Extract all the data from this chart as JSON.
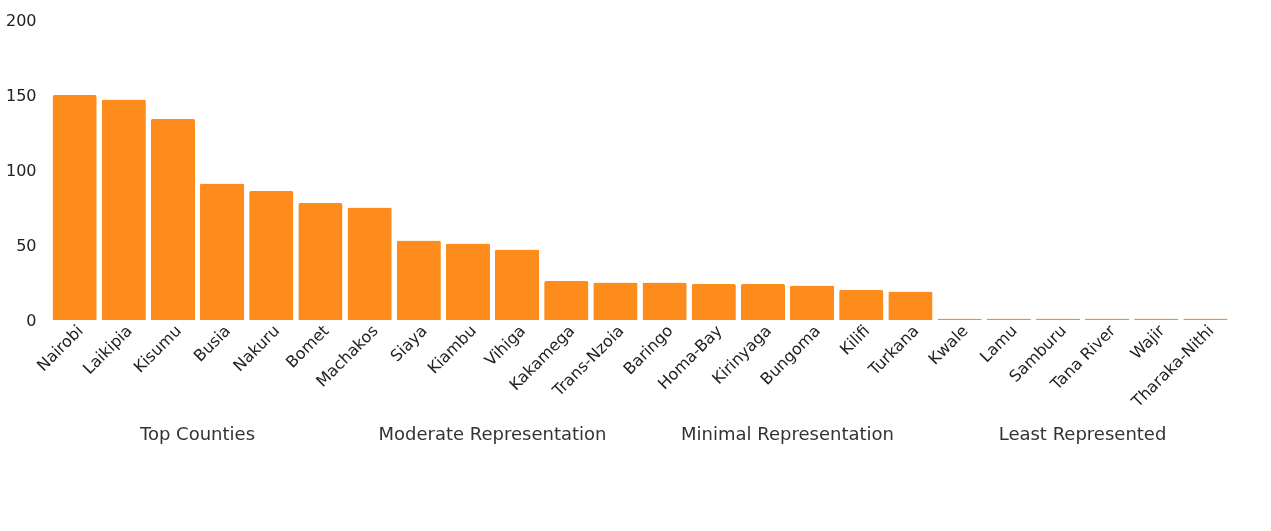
{
  "chart_data": {
    "type": "bar",
    "categories": [
      "Nairobi",
      "Laikipia",
      "Kisumu",
      "Busia",
      "Nakuru",
      "Bomet",
      "Machakos",
      "Siaya",
      "Kiambu",
      "Vihiga",
      "Kakamega",
      "Trans-Nzoia",
      "Baringo",
      "Homa-Bay",
      "Kirinyaga",
      "Bungoma",
      "Kilifi",
      "Turkana",
      "Kwale",
      "Lamu",
      "Samburu",
      "Tana River",
      "Wajir",
      "Tharaka-Nithi"
    ],
    "values": [
      150,
      147,
      134,
      91,
      86,
      78,
      75,
      53,
      51,
      47,
      26,
      25,
      25,
      24,
      24,
      23,
      20,
      19,
      1,
      1,
      1,
      1,
      1,
      1
    ],
    "color": "#fd8c1c",
    "ylim": [
      0,
      200
    ],
    "yticks": [
      0,
      50,
      100,
      150,
      200
    ],
    "grid": false,
    "annotations": [
      "Top Counties",
      "Moderate Representation",
      "Minimal Representation",
      "Least Represented"
    ]
  }
}
